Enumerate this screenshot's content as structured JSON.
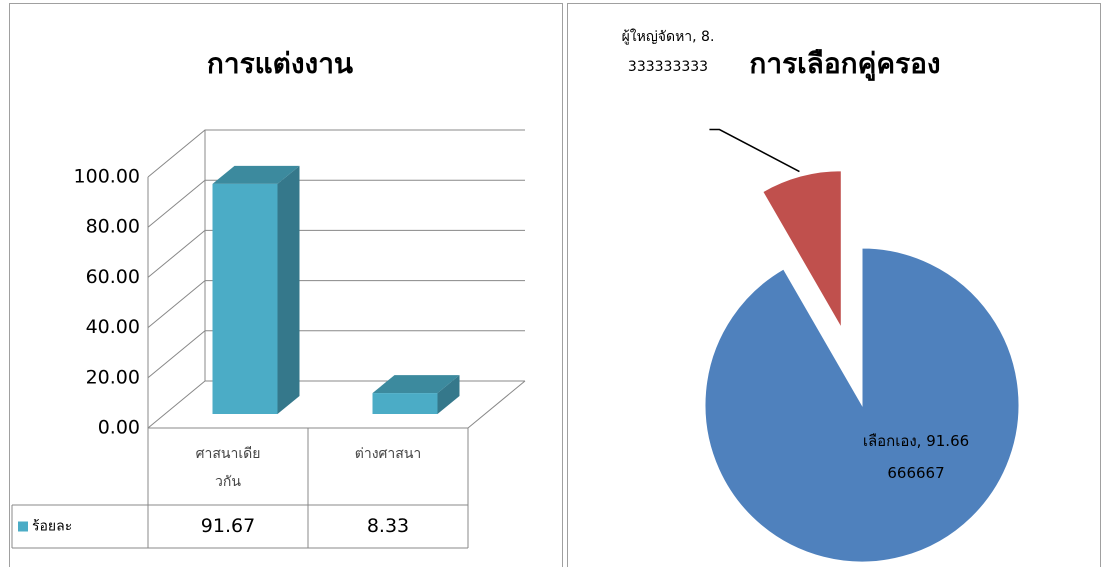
{
  "chart_data": [
    {
      "type": "bar3d",
      "title": "การแต่งงาน",
      "categories": [
        "ศาสนาเดียวกัน",
        "ต่างศาสนา"
      ],
      "series": [
        {
          "name": "ร้อยละ",
          "color": "#4bacc6",
          "values": [
            91.67,
            8.33
          ]
        }
      ],
      "ylim": [
        0,
        100
      ],
      "yticks": [
        {
          "value": 0,
          "label": "0.00"
        },
        {
          "value": 20,
          "label": "20.00"
        },
        {
          "value": 40,
          "label": "40.00"
        },
        {
          "value": 60,
          "label": "60.00"
        },
        {
          "value": 80,
          "label": "80.00"
        },
        {
          "value": 100,
          "label": "100.00"
        }
      ],
      "grid": true,
      "data_table": true
    },
    {
      "type": "pie",
      "title": "การเลือกคู่ครอง",
      "categories": [
        "เลือกเอง",
        "ผู้ใหญ่จัดหา"
      ],
      "values": [
        91.66666667,
        8.333333333
      ],
      "value_labels": [
        "เลือกเอง, 91.66666667",
        "ผู้ใหญ่จัดหา, 8.333333333"
      ],
      "colors": [
        "#4f81bd",
        "#c0504d"
      ],
      "explode": [
        0,
        1
      ]
    }
  ]
}
